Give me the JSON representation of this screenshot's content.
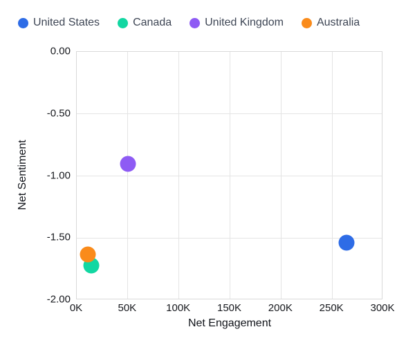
{
  "chart_data": {
    "type": "scatter",
    "title": "",
    "xlabel": "Net Engagement",
    "ylabel": "Net Sentiment",
    "xlim": [
      0,
      300000
    ],
    "ylim": [
      -2,
      0
    ],
    "grid": true,
    "legend_position": "top",
    "marker_size_px": 23,
    "x_ticks": [
      {
        "value": 0,
        "label": "0K"
      },
      {
        "value": 50000,
        "label": "50K"
      },
      {
        "value": 100000,
        "label": "100K"
      },
      {
        "value": 150000,
        "label": "150K"
      },
      {
        "value": 200000,
        "label": "200K"
      },
      {
        "value": 250000,
        "label": "250K"
      },
      {
        "value": 300000,
        "label": "300K"
      }
    ],
    "y_ticks": [
      {
        "value": 0,
        "label": "0.00"
      },
      {
        "value": -0.5,
        "label": "-0.50"
      },
      {
        "value": -1.0,
        "label": "-1.00"
      },
      {
        "value": -1.5,
        "label": "-1.50"
      },
      {
        "value": -2.0,
        "label": "-2.00"
      }
    ],
    "series": [
      {
        "name": "United States",
        "color": "#2e6ce6",
        "points": [
          {
            "x": 264000,
            "y": -1.54
          }
        ]
      },
      {
        "name": "Canada",
        "color": "#12d7a2",
        "points": [
          {
            "x": 14500,
            "y": -1.72
          }
        ]
      },
      {
        "name": "United Kingdom",
        "color": "#8e5bf4",
        "points": [
          {
            "x": 50000,
            "y": -0.9
          }
        ]
      },
      {
        "name": "Australia",
        "color": "#fa8b1b",
        "points": [
          {
            "x": 11000,
            "y": -1.63
          }
        ]
      }
    ]
  },
  "theme": {
    "gridline_color": "#e4e4e4",
    "plot_border_color": "#d9d9d9",
    "tick_label_color": "#16181d",
    "legend_label_color": "#3d4554",
    "background": "#ffffff"
  }
}
